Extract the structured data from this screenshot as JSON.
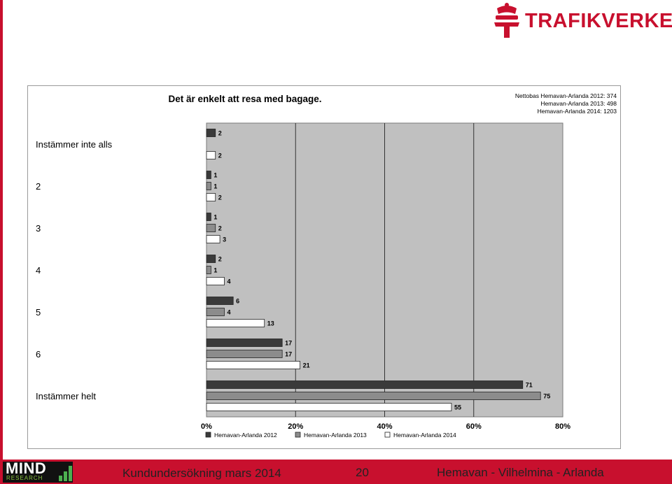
{
  "logo": {
    "text": "TRAFIKVERKET"
  },
  "footer": {
    "left": "Kundundersökning mars 2014",
    "page": "20",
    "right": "Hemavan - Vilhelmina - Arlanda",
    "brand": "MIND",
    "brand_sub": "RESEARCH"
  },
  "colors": {
    "accent": "#c8102e",
    "plot_bg": "#c0c0c0",
    "series": [
      "#3a3a3a",
      "#8c8c8c",
      "#ffffff"
    ]
  },
  "chart_data": {
    "type": "bar",
    "orientation": "horizontal",
    "title": "Det är enkelt att resa med bagage.",
    "nettobas": [
      "Nettobas  Hemavan-Arlanda 2012: 374",
      "Hemavan-Arlanda 2013: 498",
      "Hemavan-Arlanda 2014: 1203"
    ],
    "categories": [
      "Instämmer inte alls",
      "2",
      "3",
      "4",
      "5",
      "6",
      "Instämmer helt"
    ],
    "series": [
      {
        "name": "Hemavan-Arlanda 2012",
        "values": [
          2,
          1,
          1,
          2,
          6,
          17,
          71
        ]
      },
      {
        "name": "Hemavan-Arlanda 2013",
        "values": [
          null,
          1,
          2,
          1,
          4,
          17,
          75
        ]
      },
      {
        "name": "Hemavan-Arlanda 2014",
        "values": [
          2,
          2,
          3,
          4,
          13,
          21,
          55
        ]
      }
    ],
    "xlim": [
      0,
      80
    ],
    "xticks": [
      "0%",
      "20%",
      "40%",
      "60%",
      "80%"
    ],
    "grid": true,
    "legend": "bottom"
  }
}
